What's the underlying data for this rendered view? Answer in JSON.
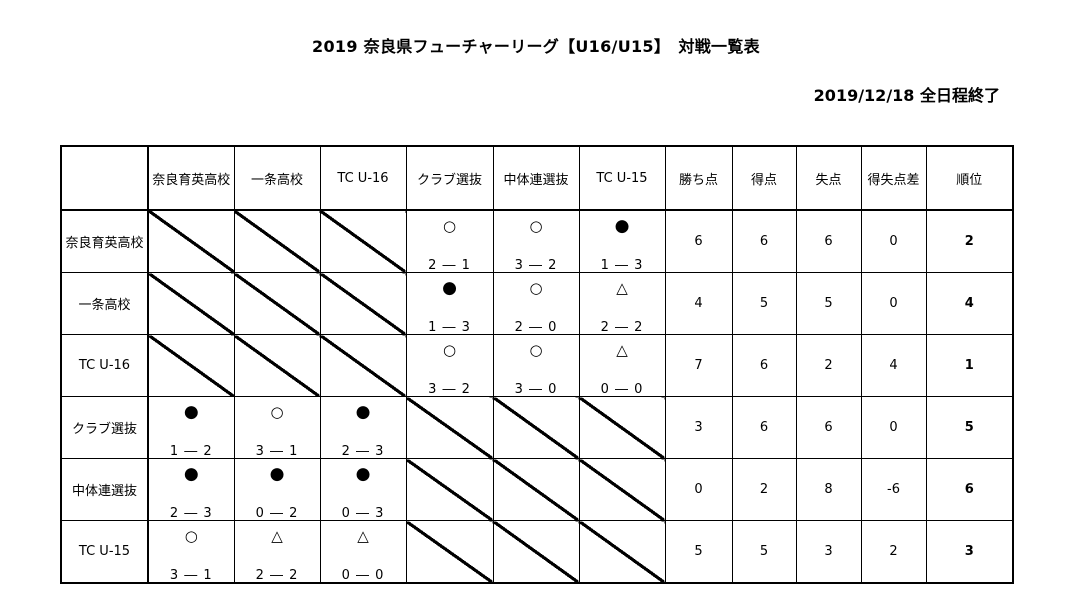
{
  "title": "2019 奈良県フューチャーリーグ【U16/U15】　対戦一覧表",
  "status": "2019/12/18 全日程終了",
  "header": {
    "corner": "",
    "teams": [
      "奈良育英高校",
      "一条高校",
      "TC U-16",
      "クラブ選抜",
      "中体連選抜",
      "TC U-15"
    ],
    "stats": [
      "勝ち点",
      "得点",
      "失点",
      "得失点差",
      "順位"
    ]
  },
  "rows": [
    {
      "team": "奈良育英高校",
      "cells": [
        {
          "type": "diag"
        },
        {
          "type": "diag"
        },
        {
          "type": "diag"
        },
        {
          "type": "result",
          "mark": "○",
          "score": "2 ― 1"
        },
        {
          "type": "result",
          "mark": "○",
          "score": "3 ― 2"
        },
        {
          "type": "result",
          "mark": "●",
          "score": "1 ― 3"
        }
      ],
      "stats": [
        "6",
        "6",
        "6",
        "0"
      ],
      "rank": "2"
    },
    {
      "team": "一条高校",
      "cells": [
        {
          "type": "diag"
        },
        {
          "type": "diag"
        },
        {
          "type": "diag"
        },
        {
          "type": "result",
          "mark": "●",
          "score": "1 ― 3"
        },
        {
          "type": "result",
          "mark": "○",
          "score": "2 ― 0"
        },
        {
          "type": "result",
          "mark": "△",
          "score": "2 ― 2"
        }
      ],
      "stats": [
        "4",
        "5",
        "5",
        "0"
      ],
      "rank": "4"
    },
    {
      "team": "TC U-16",
      "cells": [
        {
          "type": "diag"
        },
        {
          "type": "diag"
        },
        {
          "type": "diag"
        },
        {
          "type": "result",
          "mark": "○",
          "score": "3 ― 2"
        },
        {
          "type": "result",
          "mark": "○",
          "score": "3 ― 0"
        },
        {
          "type": "result",
          "mark": "△",
          "score": "0 ― 0"
        }
      ],
      "stats": [
        "7",
        "6",
        "2",
        "4"
      ],
      "rank": "1"
    },
    {
      "team": "クラブ選抜",
      "cells": [
        {
          "type": "result",
          "mark": "●",
          "score": "1 ― 2"
        },
        {
          "type": "result",
          "mark": "○",
          "score": "3 ― 1"
        },
        {
          "type": "result",
          "mark": "●",
          "score": "2 ― 3"
        },
        {
          "type": "diag"
        },
        {
          "type": "diag"
        },
        {
          "type": "diag"
        }
      ],
      "stats": [
        "3",
        "6",
        "6",
        "0"
      ],
      "rank": "5"
    },
    {
      "team": "中体連選抜",
      "cells": [
        {
          "type": "result",
          "mark": "●",
          "score": "2 ― 3"
        },
        {
          "type": "result",
          "mark": "●",
          "score": "0 ― 2"
        },
        {
          "type": "result",
          "mark": "●",
          "score": "0 ― 3"
        },
        {
          "type": "diag"
        },
        {
          "type": "diag"
        },
        {
          "type": "diag"
        }
      ],
      "stats": [
        "0",
        "2",
        "8",
        "-6"
      ],
      "rank": "6"
    },
    {
      "team": "TC U-15",
      "cells": [
        {
          "type": "result",
          "mark": "○",
          "score": "3 ― 1"
        },
        {
          "type": "result",
          "mark": "△",
          "score": "2 ― 2"
        },
        {
          "type": "result",
          "mark": "△",
          "score": "0 ― 0"
        },
        {
          "type": "diag"
        },
        {
          "type": "diag"
        },
        {
          "type": "diag"
        }
      ],
      "stats": [
        "5",
        "5",
        "3",
        "2"
      ],
      "rank": "3"
    }
  ]
}
